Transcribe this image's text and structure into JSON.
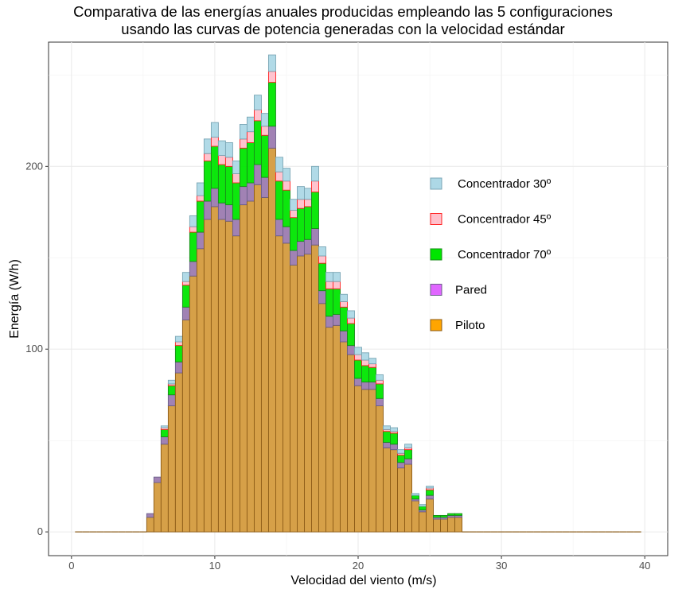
{
  "chart_data": {
    "type": "bar",
    "stacked": true,
    "title": "Comparativa de las energías anuales producidas empleando las 5 configuraciones",
    "subtitle": "usando las curvas de potencia generadas con la velocidad estándar",
    "xlabel": "Velocidad del viento (m/s)",
    "ylabel": "Energía (W/h)",
    "xlim": [
      -1.6,
      41.6
    ],
    "ylim": [
      -13,
      268
    ],
    "xticks": [
      0,
      10,
      20,
      30,
      40
    ],
    "yticks": [
      0,
      100,
      200
    ],
    "grid": true,
    "legend_position": "right-inside",
    "bin_width": 0.5,
    "x": [
      0.5,
      1.0,
      1.5,
      2.0,
      2.5,
      3.0,
      3.5,
      4.0,
      4.5,
      5.0,
      5.5,
      6.0,
      6.5,
      7.0,
      7.5,
      8.0,
      8.5,
      9.0,
      9.5,
      10.0,
      10.5,
      11.0,
      11.5,
      12.0,
      12.5,
      13.0,
      13.5,
      14.0,
      14.5,
      15.0,
      15.5,
      16.0,
      16.5,
      17.0,
      17.5,
      18.0,
      18.5,
      19.0,
      19.5,
      20.0,
      20.5,
      21.0,
      21.5,
      22.0,
      22.5,
      23.0,
      23.5,
      24.0,
      24.5,
      25.0,
      25.5,
      26.0,
      26.5,
      27.0,
      27.5,
      28.0,
      28.5,
      29.0,
      29.5,
      30.0,
      30.5,
      31.0,
      31.5,
      32.0,
      32.5,
      33.0,
      33.5,
      34.0,
      34.5,
      35.0,
      35.5,
      36.0,
      36.5,
      37.0,
      37.5,
      38.0,
      38.5,
      39.0,
      39.5
    ],
    "series": [
      {
        "name": "Piloto",
        "color": "#FFA500",
        "values": [
          0,
          0,
          0,
          0,
          0,
          0,
          0,
          0,
          0,
          0,
          8,
          27,
          48,
          69,
          87,
          116,
          140,
          155,
          171,
          178,
          171,
          170,
          162,
          179,
          181,
          190,
          183,
          210,
          162,
          158,
          146,
          151,
          152,
          157,
          125,
          112,
          113,
          104,
          97,
          80,
          78,
          78,
          69,
          46,
          45,
          35,
          37,
          17,
          11,
          18,
          7,
          7,
          8,
          8,
          0,
          0,
          0,
          0,
          0,
          0,
          0,
          0,
          0,
          0,
          0,
          0,
          0,
          0,
          0,
          0,
          0,
          0,
          0,
          0,
          0,
          0,
          0,
          0,
          0
        ]
      },
      {
        "name": "Pared",
        "color": "#E066FF",
        "values": [
          0,
          0,
          0,
          0,
          0,
          0,
          0,
          0,
          0,
          0,
          2,
          3,
          4,
          6,
          6,
          7,
          8,
          9,
          10,
          10,
          9,
          9,
          9,
          10,
          10,
          11,
          11,
          12,
          9,
          9,
          8,
          8,
          8,
          9,
          7,
          6,
          6,
          6,
          5,
          4,
          4,
          4,
          4,
          3,
          3,
          3,
          3,
          1,
          1,
          2,
          1,
          1,
          1,
          1,
          0,
          0,
          0,
          0,
          0,
          0,
          0,
          0,
          0,
          0,
          0,
          0,
          0,
          0,
          0,
          0,
          0,
          0,
          0,
          0,
          0,
          0,
          0,
          0,
          0
        ]
      },
      {
        "name": "Concentrador 70º",
        "color": "#00E600",
        "values": [
          0,
          0,
          0,
          0,
          0,
          0,
          0,
          0,
          0,
          0,
          0,
          0,
          4,
          5,
          9,
          12,
          16,
          17,
          22,
          23,
          21,
          21,
          20,
          21,
          22,
          24,
          23,
          24,
          21,
          20,
          18,
          18,
          18,
          20,
          15,
          15,
          14,
          13,
          12,
          10,
          9,
          8,
          8,
          6,
          6,
          4,
          5,
          2,
          2,
          3,
          1,
          1,
          1,
          1,
          0,
          0,
          0,
          0,
          0,
          0,
          0,
          0,
          0,
          0,
          0,
          0,
          0,
          0,
          0,
          0,
          0,
          0,
          0,
          0,
          0,
          0,
          0,
          0,
          0
        ]
      },
      {
        "name": "Concentrador 45º",
        "color": "#FFC0CB",
        "values": [
          0,
          0,
          0,
          0,
          0,
          0,
          0,
          0,
          0,
          0,
          0,
          0,
          1,
          1,
          2,
          2,
          3,
          3,
          4,
          5,
          5,
          5,
          5,
          5,
          6,
          6,
          5,
          6,
          5,
          5,
          4,
          5,
          4,
          6,
          4,
          4,
          4,
          3,
          3,
          3,
          3,
          2,
          2,
          1,
          1,
          1,
          1,
          0,
          0,
          1,
          0,
          0,
          0,
          0,
          0,
          0,
          0,
          0,
          0,
          0,
          0,
          0,
          0,
          0,
          0,
          0,
          0,
          0,
          0,
          0,
          0,
          0,
          0,
          0,
          0,
          0,
          0,
          0,
          0
        ]
      },
      {
        "name": "Concentrador 30º",
        "color": "#ADD8E6",
        "values": [
          0,
          0,
          0,
          0,
          0,
          0,
          0,
          0,
          0,
          0,
          0,
          0,
          1,
          2,
          3,
          5,
          6,
          7,
          8,
          8,
          8,
          8,
          7,
          8,
          8,
          8,
          7,
          9,
          8,
          7,
          6,
          7,
          6,
          8,
          5,
          5,
          5,
          4,
          4,
          4,
          4,
          3,
          3,
          2,
          2,
          2,
          2,
          1,
          1,
          1,
          0,
          0,
          0,
          0,
          0,
          0,
          0,
          0,
          0,
          0,
          0,
          0,
          0,
          0,
          0,
          0,
          0,
          0,
          0,
          0,
          0,
          0,
          0,
          0,
          0,
          0,
          0,
          0,
          0
        ]
      }
    ],
    "legend_order": [
      "Concentrador 30º",
      "Concentrador 45º",
      "Concentrador 70º",
      "Pared",
      "Piloto"
    ],
    "outline_colors": {
      "Concentrador 30º": "#7aa6b5",
      "Concentrador 45º": "#ff2020",
      "Concentrador 70º": "#1a8a1a",
      "Pared": "#6a5f8a",
      "Piloto": "#8b5a16"
    },
    "overlap_colors": {
      "Pared": "#9C7BB0",
      "Piloto": "#D6A048"
    }
  }
}
